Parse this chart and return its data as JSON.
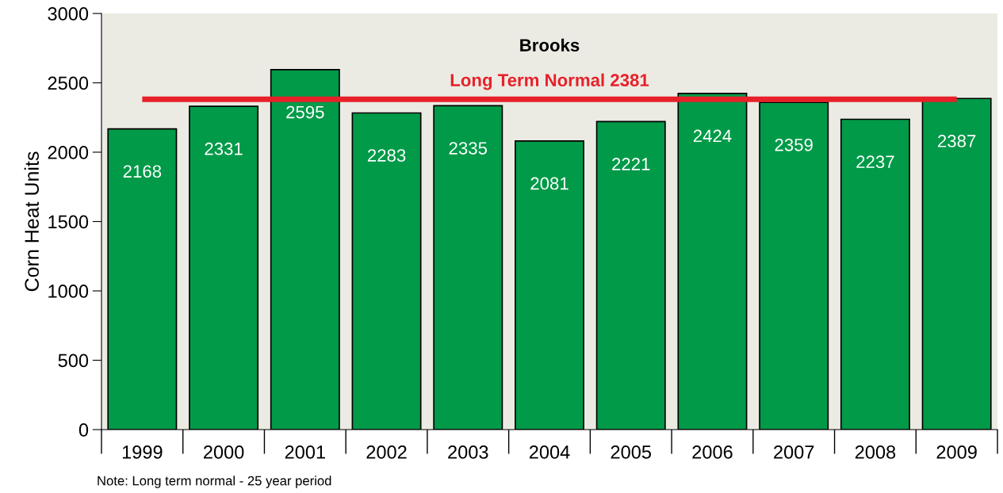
{
  "chart_data": {
    "type": "bar",
    "title": "Brooks",
    "ylabel": "Corn Heat Units",
    "categories": [
      "1999",
      "2000",
      "2001",
      "2002",
      "2003",
      "2004",
      "2005",
      "2006",
      "2007",
      "2008",
      "2009"
    ],
    "values": [
      2168,
      2331,
      2595,
      2283,
      2335,
      2081,
      2221,
      2424,
      2359,
      2237,
      2387
    ],
    "color": "#009a48",
    "data_labels": true,
    "ylim": [
      0,
      3000
    ],
    "yticks": [
      0,
      500,
      1000,
      1500,
      2000,
      2500,
      3000
    ],
    "grid": false,
    "ref_lines": [
      {
        "axis": "y",
        "value": 2381,
        "label": "Long Term Normal 2381",
        "color": "#e8202a",
        "line_style": "solid"
      }
    ],
    "annotations": [
      "Note: Long term normal - 25 year period"
    ]
  }
}
